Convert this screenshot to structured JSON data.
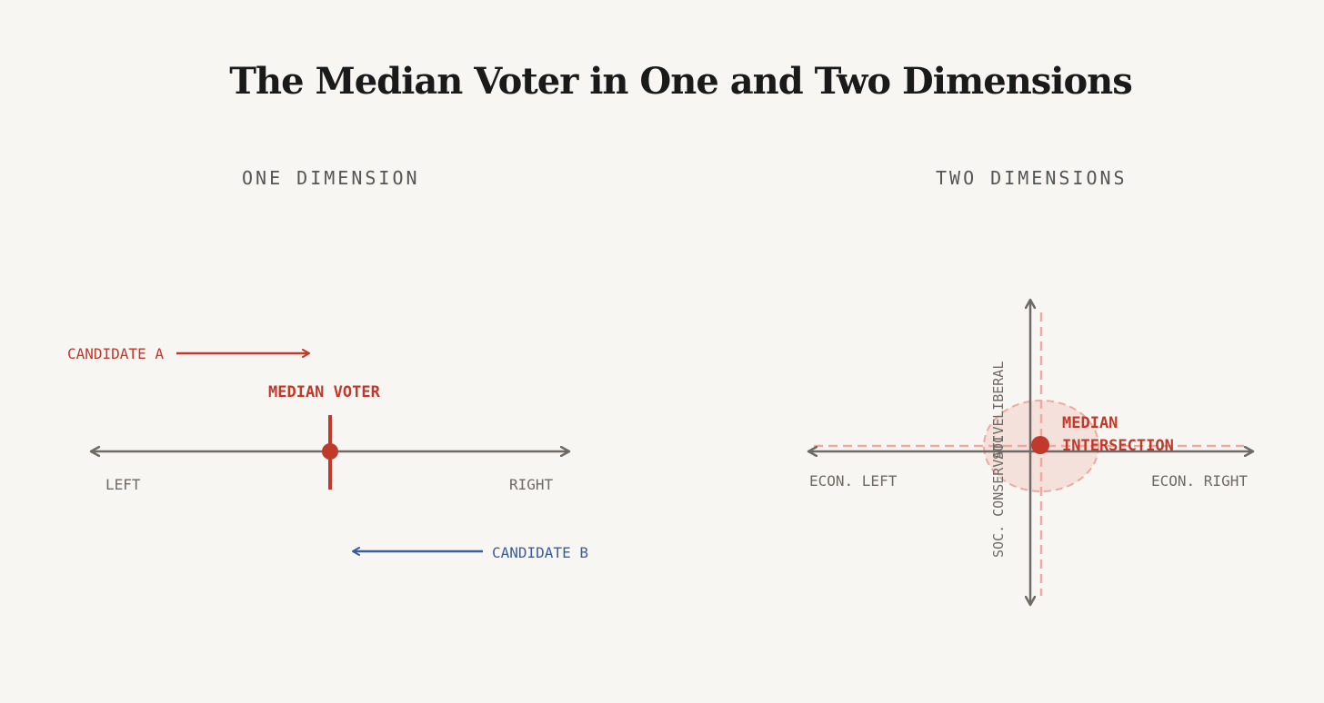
{
  "title": "The Median Voter in One and Two Dimensions",
  "colors": {
    "background": "#f8f6f3",
    "axis": "#6e6a66",
    "red": "#c0392b",
    "blue": "#3a5d9c",
    "pink_dashed": "#eeaaa0",
    "pink_fill": "#f4d9d3"
  },
  "one_dimension": {
    "heading": "ONE DIMENSION",
    "axis_left_label": "LEFT",
    "axis_right_label": "RIGHT",
    "median_label": "MEDIAN VOTER",
    "candidate_a_label": "CANDIDATE A",
    "candidate_b_label": "CANDIDATE B"
  },
  "two_dimensions": {
    "heading": "TWO DIMENSIONS",
    "x_left_label": "ECON. LEFT",
    "x_right_label": "ECON. RIGHT",
    "y_top_label": "SOC. LIBERAL",
    "y_bottom_label": "SOC. CONSERVATIVE",
    "median_label_line1": "MEDIAN",
    "median_label_line2": "INTERSECTION"
  }
}
